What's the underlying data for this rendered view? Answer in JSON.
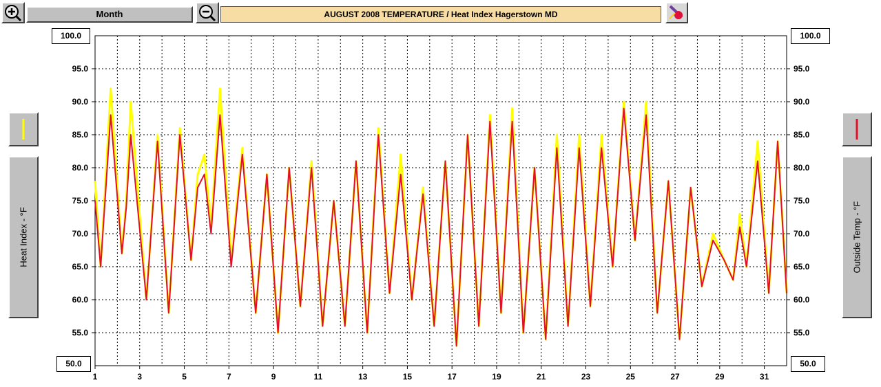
{
  "toolbar": {
    "period_label": "Month",
    "title": "AUGUST  2008   TEMPERATURE / Heat Index  Hagerstown MD"
  },
  "colors": {
    "heat_index": "#ffff00",
    "outside_temp": "#e0102a",
    "grid": "#000000"
  },
  "chart_data": {
    "type": "line",
    "title": "AUGUST  2008   TEMPERATURE / Heat Index  Hagerstown MD",
    "ylabel_left": "Heat Index - °F",
    "ylabel_right": "Outside Temp - °F",
    "ylim": [
      50,
      100
    ],
    "y_top_label": "100.0",
    "y_bottom_label": "50.0",
    "y_ticks": [
      "95.0",
      "90.0",
      "85.0",
      "80.0",
      "75.0",
      "70.0",
      "65.0",
      "60.0",
      "55.0"
    ],
    "xlim": [
      1,
      32
    ],
    "x_ticks": [
      "1",
      "3",
      "5",
      "7",
      "9",
      "11",
      "13",
      "15",
      "17",
      "19",
      "21",
      "23",
      "25",
      "27",
      "29",
      "31"
    ],
    "grid": true,
    "series": [
      {
        "name": "Heat Index",
        "axis": "left",
        "points": [
          [
            1,
            78
          ],
          [
            1.25,
            65
          ],
          [
            1.7,
            92
          ],
          [
            2.2,
            67
          ],
          [
            2.4,
            75
          ],
          [
            2.6,
            90
          ],
          [
            3.3,
            60
          ],
          [
            3.8,
            85
          ],
          [
            4.3,
            58
          ],
          [
            4.8,
            86
          ],
          [
            5.3,
            66
          ],
          [
            5.6,
            79
          ],
          [
            5.9,
            82
          ],
          [
            6.2,
            71
          ],
          [
            6.6,
            92
          ],
          [
            7.1,
            66
          ],
          [
            7.6,
            83
          ],
          [
            8.2,
            58
          ],
          [
            8.7,
            79
          ],
          [
            9.2,
            55
          ],
          [
            9.7,
            80
          ],
          [
            10.2,
            59
          ],
          [
            10.7,
            81
          ],
          [
            11.2,
            56
          ],
          [
            11.7,
            75
          ],
          [
            12.2,
            56
          ],
          [
            12.7,
            81
          ],
          [
            13.2,
            55
          ],
          [
            13.7,
            86
          ],
          [
            14.2,
            61
          ],
          [
            14.7,
            82
          ],
          [
            15.2,
            60
          ],
          [
            15.7,
            77
          ],
          [
            16.2,
            56
          ],
          [
            16.7,
            81
          ],
          [
            17.2,
            53
          ],
          [
            17.7,
            85
          ],
          [
            18.2,
            56
          ],
          [
            18.7,
            88
          ],
          [
            19.2,
            58
          ],
          [
            19.7,
            89
          ],
          [
            20.2,
            55
          ],
          [
            20.7,
            80
          ],
          [
            21.2,
            54
          ],
          [
            21.7,
            85
          ],
          [
            22.2,
            56
          ],
          [
            22.7,
            85
          ],
          [
            23.2,
            59
          ],
          [
            23.7,
            85
          ],
          [
            24.2,
            65
          ],
          [
            24.7,
            90
          ],
          [
            25.2,
            69
          ],
          [
            25.7,
            90
          ],
          [
            26.2,
            58
          ],
          [
            26.7,
            78
          ],
          [
            27.2,
            54
          ],
          [
            27.7,
            77
          ],
          [
            28.2,
            62
          ],
          [
            28.7,
            70
          ],
          [
            29.2,
            66
          ],
          [
            29.6,
            63
          ],
          [
            29.9,
            73
          ],
          [
            30.2,
            65
          ],
          [
            30.7,
            84
          ],
          [
            31.2,
            61
          ],
          [
            31.6,
            84
          ],
          [
            32,
            61
          ]
        ]
      },
      {
        "name": "Outside Temp",
        "axis": "right",
        "points": [
          [
            1,
            75
          ],
          [
            1.25,
            65
          ],
          [
            1.7,
            88
          ],
          [
            2.2,
            67
          ],
          [
            2.4,
            74
          ],
          [
            2.6,
            85
          ],
          [
            3.3,
            60
          ],
          [
            3.8,
            84
          ],
          [
            4.3,
            58
          ],
          [
            4.8,
            85
          ],
          [
            5.3,
            66
          ],
          [
            5.6,
            77
          ],
          [
            5.9,
            79
          ],
          [
            6.2,
            70
          ],
          [
            6.6,
            88
          ],
          [
            7.1,
            65
          ],
          [
            7.6,
            82
          ],
          [
            8.2,
            58
          ],
          [
            8.7,
            79
          ],
          [
            9.2,
            55
          ],
          [
            9.7,
            80
          ],
          [
            10.2,
            59
          ],
          [
            10.7,
            80
          ],
          [
            11.2,
            56
          ],
          [
            11.7,
            75
          ],
          [
            12.2,
            56
          ],
          [
            12.7,
            81
          ],
          [
            13.2,
            55
          ],
          [
            13.7,
            85
          ],
          [
            14.2,
            61
          ],
          [
            14.7,
            79
          ],
          [
            15.2,
            60
          ],
          [
            15.7,
            76
          ],
          [
            16.2,
            56
          ],
          [
            16.7,
            81
          ],
          [
            17.2,
            53
          ],
          [
            17.7,
            85
          ],
          [
            18.2,
            56
          ],
          [
            18.7,
            87
          ],
          [
            19.2,
            58
          ],
          [
            19.7,
            87
          ],
          [
            20.2,
            55
          ],
          [
            20.7,
            80
          ],
          [
            21.2,
            54
          ],
          [
            21.7,
            83
          ],
          [
            22.2,
            56
          ],
          [
            22.7,
            83
          ],
          [
            23.2,
            59
          ],
          [
            23.7,
            83
          ],
          [
            24.2,
            65
          ],
          [
            24.7,
            89
          ],
          [
            25.2,
            69
          ],
          [
            25.7,
            88
          ],
          [
            26.2,
            58
          ],
          [
            26.7,
            78
          ],
          [
            27.2,
            54
          ],
          [
            27.7,
            77
          ],
          [
            28.2,
            62
          ],
          [
            28.7,
            69
          ],
          [
            29.2,
            66
          ],
          [
            29.6,
            63
          ],
          [
            29.9,
            71
          ],
          [
            30.2,
            65
          ],
          [
            30.7,
            81
          ],
          [
            31.2,
            61
          ],
          [
            31.6,
            84
          ],
          [
            32,
            61
          ]
        ]
      }
    ]
  }
}
